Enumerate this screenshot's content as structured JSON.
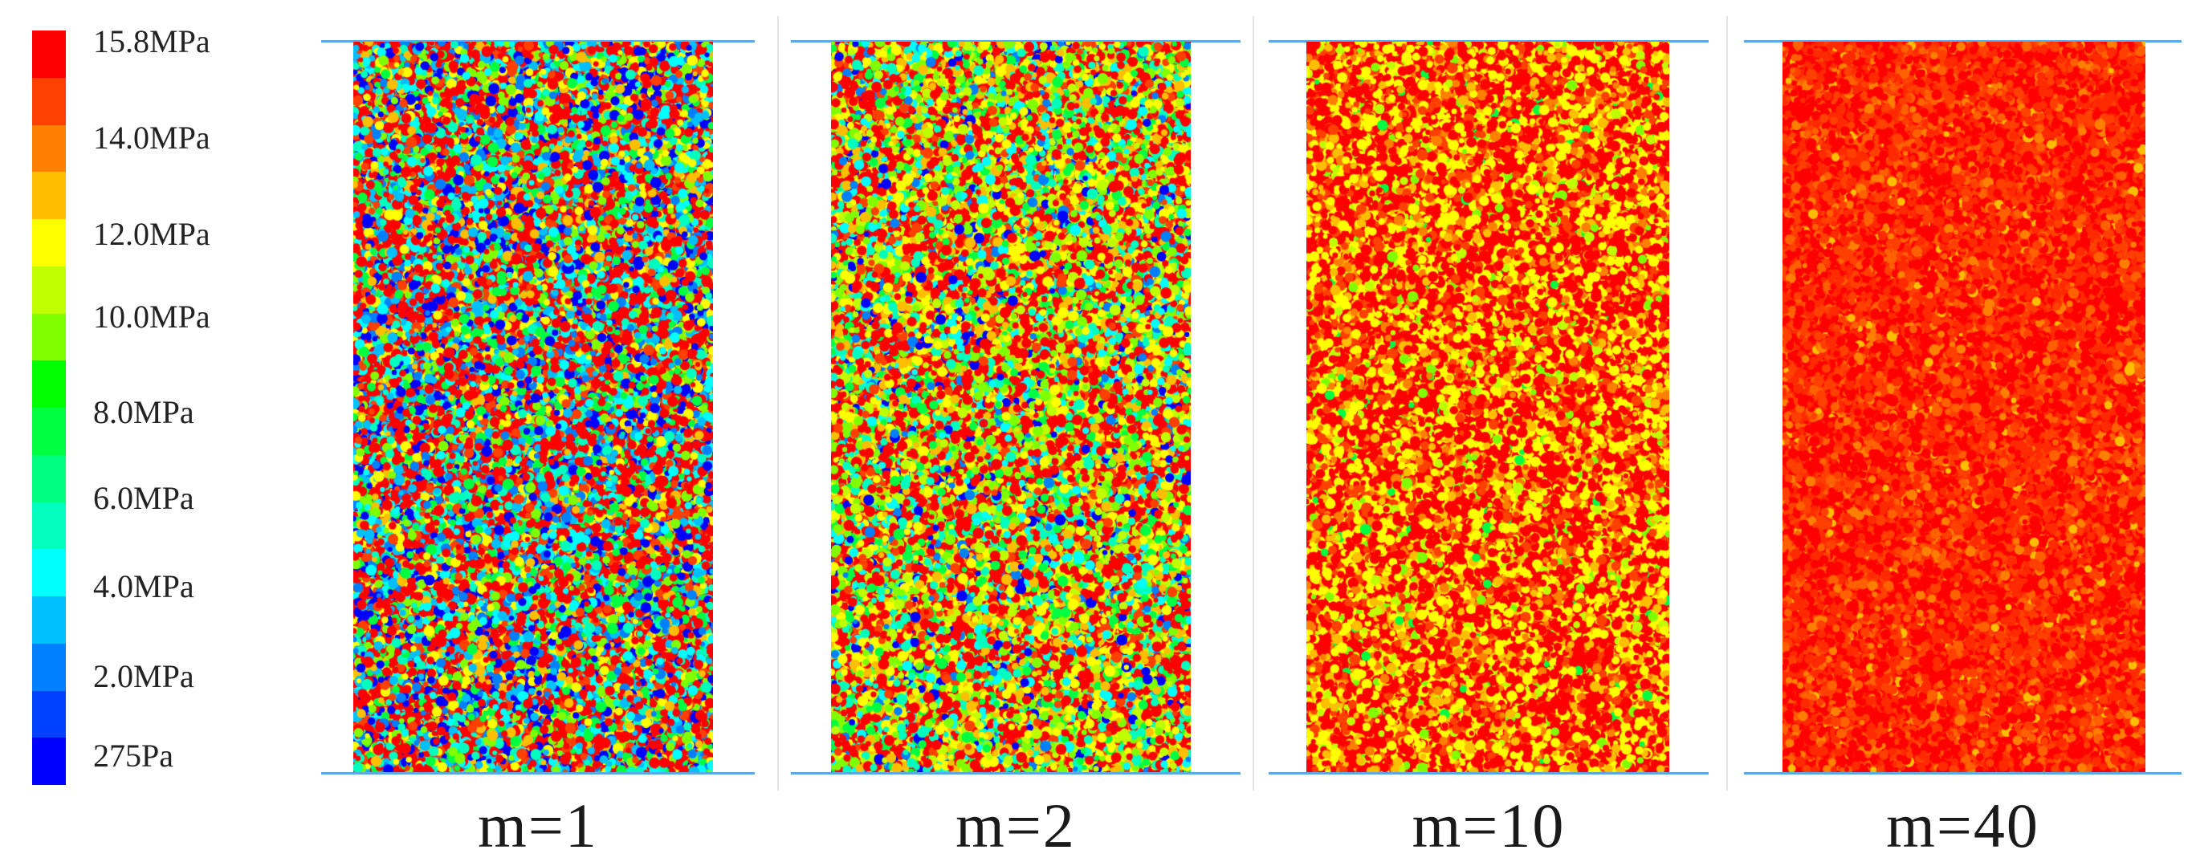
{
  "legend": {
    "colors": [
      "#ff0000",
      "#ff4000",
      "#ff8000",
      "#ffbf00",
      "#ffff00",
      "#bfff00",
      "#80ff00",
      "#00ff00",
      "#00ff40",
      "#00ff80",
      "#00ffbf",
      "#00ffff",
      "#00bfff",
      "#0080ff",
      "#0040ff",
      "#0000ff"
    ],
    "labels": [
      "15.8MPa",
      "14.0MPa",
      "12.0MPa",
      "10.0MPa",
      "8.0MPa",
      "6.0MPa",
      "4.0MPa",
      "2.0MPa",
      "275Pa"
    ]
  },
  "panels": [
    {
      "caption": "m=1",
      "palette": [
        "#ff0000",
        "#ff4000",
        "#ffbf00",
        "#ffff00",
        "#80ff00",
        "#00ff40",
        "#00ffbf",
        "#00ffff",
        "#00bfff",
        "#0080ff",
        "#0000ff"
      ],
      "weights": [
        30,
        6,
        5,
        8,
        7,
        8,
        6,
        8,
        7,
        5,
        10
      ]
    },
    {
      "caption": "m=2",
      "palette": [
        "#ff0000",
        "#ff4000",
        "#ffbf00",
        "#ffff00",
        "#bfff00",
        "#80ff00",
        "#00ff40",
        "#00ffbf",
        "#00ffff",
        "#0080ff",
        "#0000ff"
      ],
      "weights": [
        28,
        5,
        8,
        14,
        8,
        9,
        7,
        8,
        6,
        3,
        4
      ]
    },
    {
      "caption": "m=10",
      "palette": [
        "#ff0000",
        "#ff4000",
        "#ff8000",
        "#ffbf00",
        "#ffff00",
        "#bfff00",
        "#80ff00",
        "#00ff40"
      ],
      "weights": [
        44,
        10,
        6,
        10,
        24,
        3,
        2,
        1
      ]
    },
    {
      "caption": "m=40",
      "palette": [
        "#ff0000",
        "#ff2a00",
        "#ff4000",
        "#ff6000",
        "#ff8000",
        "#ffbf00"
      ],
      "weights": [
        40,
        24,
        18,
        10,
        6,
        2
      ]
    }
  ]
}
